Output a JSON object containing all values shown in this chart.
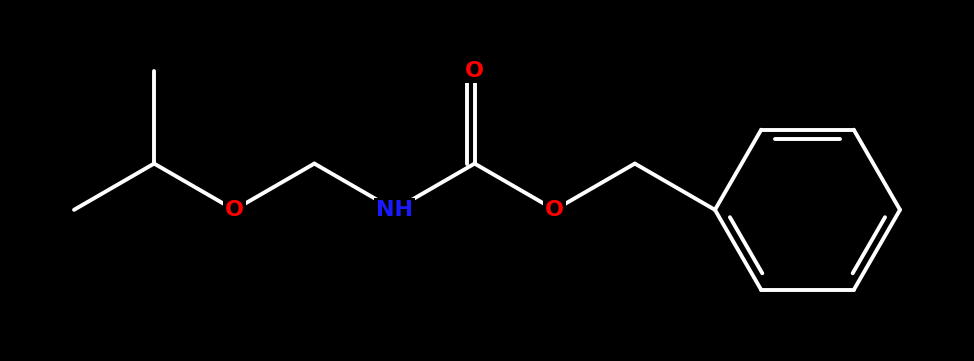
{
  "background_color": "#000000",
  "bond_color": "#ffffff",
  "O_color": "#ff0000",
  "N_color": "#1a1aff",
  "bond_width": 2.8,
  "font_size": 16,
  "figsize": [
    9.74,
    3.61
  ],
  "dpi": 100,
  "xlim": [
    -0.2,
    9.8
  ],
  "ylim": [
    -3.5,
    2.8
  ]
}
